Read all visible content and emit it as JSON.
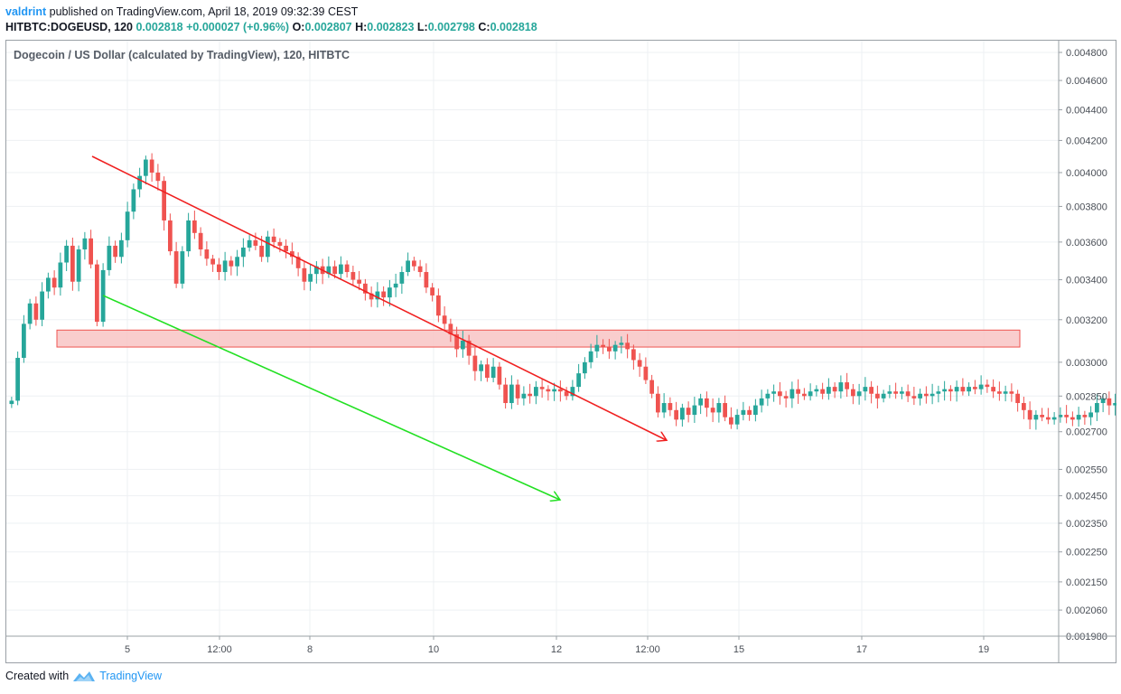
{
  "header": {
    "user": "valdrint",
    "published_text": "published on TradingView.com, April 18, 2019 09:32:39 CEST"
  },
  "ohlc": {
    "symbol": "HITBTC:DOGEUSD, 120",
    "last": "0.002818",
    "change": "+0.000027 (+0.96%)",
    "o_label": "O:",
    "o": "0.002807",
    "h_label": "H:",
    "h": "0.002823",
    "l_label": "L:",
    "l": "0.002798",
    "c_label": "C:",
    "c": "0.002818"
  },
  "chart_data": {
    "type": "candlestick",
    "title": "Dogecoin / US Dollar (calculated by TradingView), 120, HITBTC",
    "y_scale": "log",
    "ylim": [
      0.00198,
      0.0048
    ],
    "y_ticks": [
      "0.004800",
      "0.004600",
      "0.004400",
      "0.004200",
      "0.004000",
      "0.003800",
      "0.003600",
      "0.003400",
      "0.003200",
      "0.003000",
      "0.002850",
      "0.002700",
      "0.002550",
      "0.002450",
      "0.002350",
      "0.002250",
      "0.002150",
      "0.002060",
      "0.001980"
    ],
    "x_ticks": [
      "5",
      "12:00",
      "8",
      "10",
      "12",
      "12:00",
      "15",
      "17",
      "19"
    ],
    "grid": true,
    "up_color": "#26a69a",
    "down_color": "#ef5350",
    "candles_close": [
      0.00283,
      0.00302,
      0.00318,
      0.00328,
      0.0032,
      0.00334,
      0.00341,
      0.00336,
      0.00349,
      0.00358,
      0.00339,
      0.00356,
      0.00362,
      0.00348,
      0.00319,
      0.00345,
      0.00358,
      0.00352,
      0.00361,
      0.00377,
      0.0039,
      0.00398,
      0.00408,
      0.004,
      0.00395,
      0.00372,
      0.00355,
      0.00338,
      0.00355,
      0.00372,
      0.00365,
      0.00356,
      0.00351,
      0.00348,
      0.00344,
      0.0035,
      0.00347,
      0.00352,
      0.00357,
      0.00361,
      0.00358,
      0.00352,
      0.00363,
      0.0036,
      0.00358,
      0.00355,
      0.00352,
      0.00346,
      0.00339,
      0.00343,
      0.00347,
      0.00343,
      0.00347,
      0.00343,
      0.00348,
      0.00344,
      0.0034,
      0.00338,
      0.00333,
      0.0033,
      0.00334,
      0.00331,
      0.00336,
      0.00338,
      0.00344,
      0.0035,
      0.00347,
      0.00344,
      0.00336,
      0.00332,
      0.00322,
      0.00318,
      0.00313,
      0.00306,
      0.0031,
      0.00303,
      0.00296,
      0.00299,
      0.00293,
      0.00298,
      0.0029,
      0.00282,
      0.0029,
      0.00284,
      0.00286,
      0.00285,
      0.00289,
      0.00288,
      0.00287,
      0.00288,
      0.00287,
      0.00285,
      0.00289,
      0.00295,
      0.003,
      0.00305,
      0.00308,
      0.00307,
      0.00305,
      0.00308,
      0.00309,
      0.00306,
      0.00301,
      0.00298,
      0.00292,
      0.00286,
      0.00278,
      0.00282,
      0.00279,
      0.00275,
      0.0028,
      0.00277,
      0.00281,
      0.00284,
      0.0028,
      0.00278,
      0.00282,
      0.00276,
      0.00273,
      0.00277,
      0.00279,
      0.00277,
      0.00281,
      0.00284,
      0.00286,
      0.00287,
      0.00285,
      0.00284,
      0.00288,
      0.00286,
      0.00285,
      0.00287,
      0.00288,
      0.00286,
      0.00289,
      0.00287,
      0.00291,
      0.00288,
      0.00285,
      0.00287,
      0.00289,
      0.00286,
      0.00284,
      0.00286,
      0.00287,
      0.00286,
      0.00287,
      0.00285,
      0.00284,
      0.00286,
      0.00285,
      0.00286,
      0.00287,
      0.00288,
      0.00287,
      0.00289,
      0.00287,
      0.00289,
      0.00288,
      0.0029,
      0.00289,
      0.00287,
      0.00286,
      0.00287,
      0.00286,
      0.00282,
      0.00279,
      0.00275,
      0.00277,
      0.00276,
      0.00275,
      0.00276,
      0.00277,
      0.00276,
      0.00275,
      0.00277,
      0.00276,
      0.00278,
      0.00282,
      0.00284,
      0.00281,
      0.00282,
      0.0028,
      0.00281,
      0.0028,
      0.00281,
      0.0028,
      0.00281,
      0.0028,
      0.00281,
      0.00282,
      0.00281,
      0.00282,
      0.00281,
      0.00282
    ],
    "shapes": {
      "resistance_zone": {
        "from": 0.00307,
        "to": 0.00315,
        "color": "#ef5350"
      },
      "red_trendline": {
        "start": 0.0041,
        "end": 0.002665,
        "color": "#f02020"
      },
      "green_trendline": {
        "start": 0.00332,
        "end": 0.002435,
        "color": "#22e022"
      }
    }
  },
  "footer": {
    "created_with": "Created with",
    "brand": "TradingView"
  }
}
